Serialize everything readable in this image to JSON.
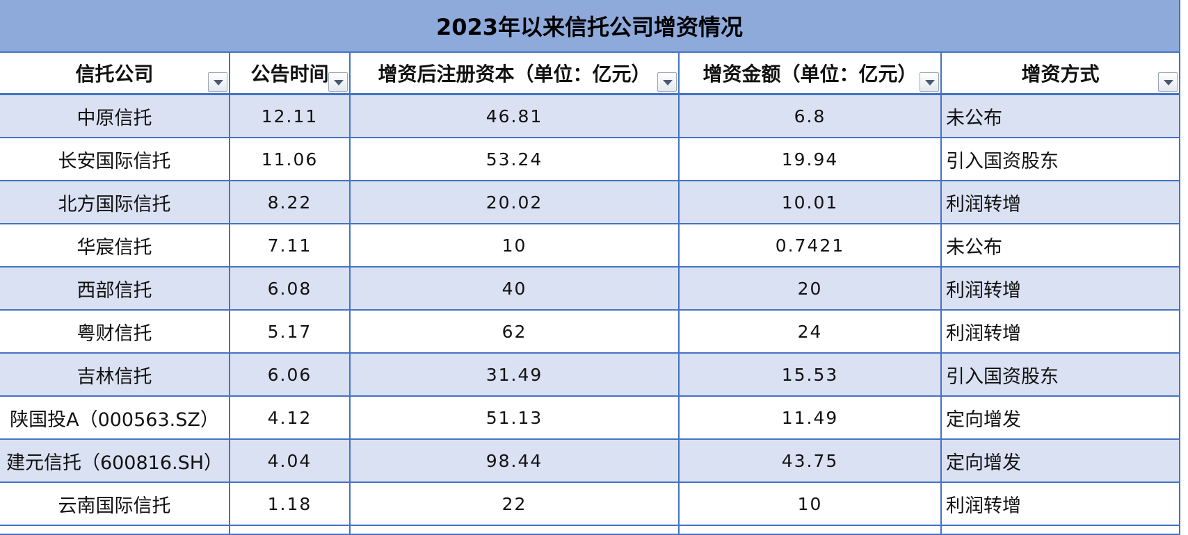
{
  "title": "2023年以来信托公司增资情况",
  "table": {
    "header": [
      "信托公司",
      "公告时间",
      "增资后注册资本（单位：亿元）",
      "增资金额（单位：亿元）",
      "增资方式"
    ],
    "rows": [
      [
        "中原信托",
        "12.11",
        "46.81",
        "6.8",
        "未公布"
      ],
      [
        "长安国际信托",
        "11.06",
        "53.24",
        "19.94",
        "引入国资股东"
      ],
      [
        "北方国际信托",
        "8.22",
        "20.02",
        "10.01",
        "利润转增"
      ],
      [
        "华宸信托",
        "7.11",
        "10",
        "0.7421",
        "未公布"
      ],
      [
        "西部信托",
        "6.08",
        "40",
        "20",
        "利润转增"
      ],
      [
        "粤财信托",
        "5.17",
        "62",
        "24",
        "利润转增"
      ],
      [
        "吉林信托",
        "6.06",
        "31.49",
        "15.53",
        "引入国资股东"
      ],
      [
        "陕国投A（000563.SZ）",
        "4.12",
        "51.13",
        "11.49",
        "定向增发"
      ],
      [
        "建元信托（600816.SH）",
        "4.04",
        "98.44",
        "43.75",
        "定向增发"
      ],
      [
        "云南国际信托",
        "1.18",
        "22",
        "10",
        "利润转增"
      ]
    ]
  }
}
